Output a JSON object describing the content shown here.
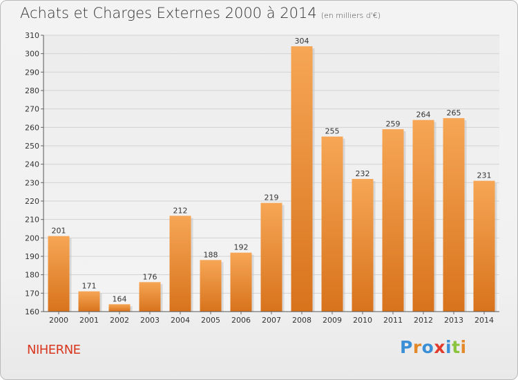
{
  "title": "Achats et Charges Externes 2000 à 2014",
  "unit": "(en milliers d'€)",
  "commune": "NIHERNE",
  "logo": {
    "text": "Proxiti",
    "letters": [
      {
        "ch": "P",
        "color": "#3a8fd6"
      },
      {
        "ch": "r",
        "color": "#e4892a"
      },
      {
        "ch": "o",
        "color": "#3a8fd6"
      },
      {
        "ch": "x",
        "color": "#e23a2c"
      },
      {
        "ch": "i",
        "color": "#3a8fd6"
      },
      {
        "ch": "t",
        "color": "#8bc53f"
      },
      {
        "ch": "i",
        "color": "#e4892a"
      }
    ]
  },
  "chart_data": {
    "type": "bar",
    "categories": [
      "2000",
      "2001",
      "2002",
      "2003",
      "2004",
      "2005",
      "2006",
      "2007",
      "2008",
      "2009",
      "2010",
      "2011",
      "2012",
      "2013",
      "2014"
    ],
    "values": [
      201,
      171,
      164,
      176,
      212,
      188,
      192,
      219,
      304,
      255,
      232,
      259,
      264,
      265,
      231
    ],
    "ylim": [
      160,
      310
    ],
    "yticks": [
      160,
      170,
      180,
      190,
      200,
      210,
      220,
      230,
      240,
      250,
      260,
      270,
      280,
      290,
      300,
      310
    ],
    "grid": true,
    "bar_color_top": "#f6a655",
    "bar_color_bottom": "#d8731c",
    "title": "Achats et Charges Externes 2000 à 2014",
    "xlabel": "",
    "ylabel": ""
  }
}
